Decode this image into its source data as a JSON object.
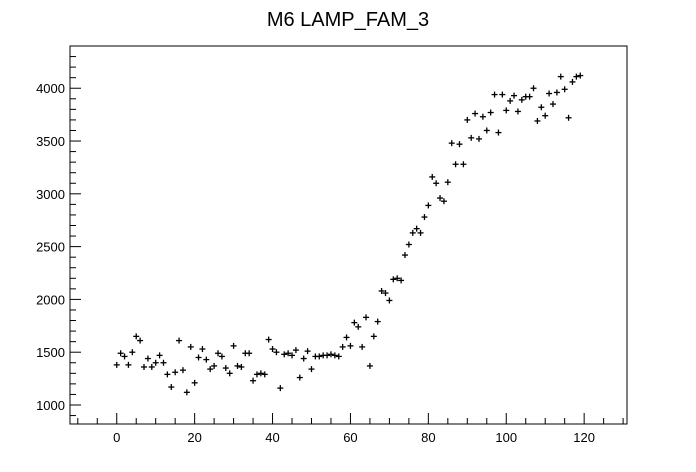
{
  "chart_data": {
    "type": "scatter",
    "title": "M6 LAMP_FAM_3",
    "xlabel": "",
    "ylabel": "",
    "xlim": [
      -12,
      131
    ],
    "ylim": [
      820,
      4400
    ],
    "xticks": [
      0,
      20,
      40,
      60,
      80,
      100,
      120
    ],
    "yticks": [
      1000,
      1500,
      2000,
      2500,
      3000,
      3500,
      4000
    ],
    "x_minor_step": 5,
    "y_minor_step": 100,
    "grid": false,
    "marker": "cross",
    "color": "#000000",
    "series": [
      {
        "x": [
          0,
          1,
          2,
          3,
          4,
          5,
          6,
          7,
          8,
          9,
          10,
          11,
          12,
          13,
          14,
          15,
          16,
          17,
          18,
          19,
          20,
          21,
          22,
          23,
          24,
          25,
          26,
          27,
          28,
          29,
          30,
          31,
          32,
          33,
          34,
          35,
          36,
          37,
          38,
          39,
          40,
          41,
          42,
          43,
          44,
          45,
          46,
          47,
          48,
          49,
          50,
          51,
          52,
          53,
          54,
          55,
          56,
          57,
          58,
          59,
          60,
          61,
          62,
          63,
          64,
          65,
          66,
          67,
          68,
          69,
          70,
          71,
          72,
          73,
          74,
          75,
          76,
          77,
          78,
          79,
          80,
          81,
          82,
          83,
          84,
          85,
          86,
          87,
          88,
          89,
          90,
          91,
          92,
          93,
          94,
          95,
          96,
          97,
          98,
          99,
          100,
          101,
          102,
          103,
          104,
          105,
          106,
          107,
          108,
          109,
          110,
          111,
          112,
          113,
          114,
          115,
          116,
          117,
          118,
          119
        ],
        "y": [
          1380,
          1490,
          1460,
          1380,
          1500,
          1650,
          1610,
          1360,
          1440,
          1360,
          1400,
          1470,
          1400,
          1290,
          1170,
          1310,
          1610,
          1330,
          1120,
          1550,
          1210,
          1450,
          1530,
          1430,
          1340,
          1370,
          1490,
          1460,
          1350,
          1300,
          1560,
          1370,
          1360,
          1490,
          1490,
          1230,
          1290,
          1300,
          1290,
          1620,
          1530,
          1500,
          1160,
          1480,
          1490,
          1470,
          1520,
          1260,
          1440,
          1510,
          1340,
          1460,
          1460,
          1470,
          1470,
          1480,
          1470,
          1460,
          1550,
          1640,
          1560,
          1780,
          1740,
          1550,
          1830,
          1370,
          1650,
          1790,
          2080,
          2060,
          1990,
          2190,
          2200,
          2180,
          2420,
          2520,
          2630,
          2670,
          2630,
          2780,
          2890,
          3160,
          3100,
          2960,
          2930,
          3110,
          3480,
          3280,
          3470,
          3280,
          3700,
          3530,
          3760,
          3520,
          3730,
          3600,
          3770,
          3940,
          3580,
          3940,
          3790,
          3880,
          3930,
          3780,
          3890,
          3920,
          3920,
          4000,
          3690,
          3820,
          3740,
          3950,
          3850,
          3960,
          4110,
          3990,
          3720,
          4060,
          4110,
          4120
        ]
      }
    ]
  }
}
